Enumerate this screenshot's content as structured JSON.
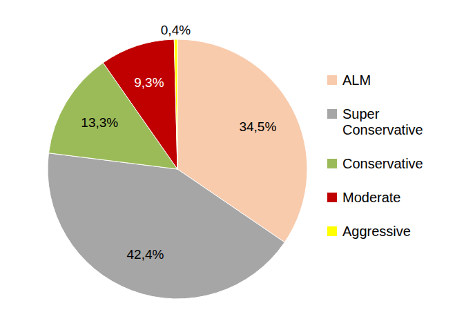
{
  "chart_data": {
    "type": "pie",
    "categories": [
      "ALM",
      "Super Conservative",
      "Conservative",
      "Moderate",
      "Aggressive"
    ],
    "values": [
      34.5,
      42.4,
      13.3,
      9.3,
      0.4
    ],
    "value_labels": [
      "34,5%",
      "42,4%",
      "13,3%",
      "9,3%",
      "0,4%"
    ],
    "colors": [
      "#f8cbad",
      "#a6a6a6",
      "#9bbb59",
      "#c00000",
      "#ffff00"
    ],
    "legend": "right",
    "data_labels": true
  }
}
